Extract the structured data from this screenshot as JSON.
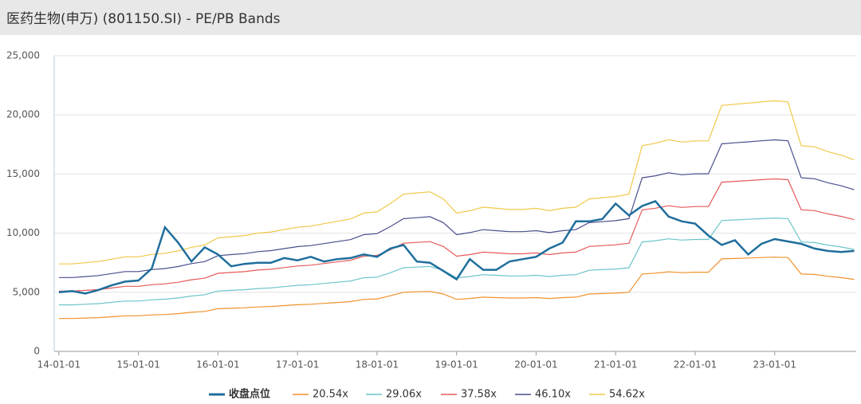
{
  "header": {
    "title": "医药生物(申万) (801150.SI) - PE/PB Bands"
  },
  "chart_data": {
    "type": "line",
    "x": [
      "14-01-01",
      "14-03-01",
      "14-05-01",
      "14-07-01",
      "14-09-01",
      "14-11-01",
      "15-01-01",
      "15-03-01",
      "15-05-01",
      "15-07-01",
      "15-09-01",
      "15-11-01",
      "16-01-01",
      "16-03-01",
      "16-05-01",
      "16-07-01",
      "16-09-01",
      "16-11-01",
      "17-01-01",
      "17-03-01",
      "17-05-01",
      "17-07-01",
      "17-09-01",
      "17-11-01",
      "18-01-01",
      "18-03-01",
      "18-05-01",
      "18-07-01",
      "18-09-01",
      "18-11-01",
      "19-01-01",
      "19-03-01",
      "19-05-01",
      "19-07-01",
      "19-09-01",
      "19-11-01",
      "20-01-01",
      "20-03-01",
      "20-05-01",
      "20-07-01",
      "20-09-01",
      "20-11-01",
      "21-01-01",
      "21-03-01",
      "21-05-01",
      "21-07-01",
      "21-09-01",
      "21-11-01",
      "22-01-01",
      "22-03-01",
      "22-05-01",
      "22-07-01",
      "22-09-01",
      "22-11-01",
      "23-01-01",
      "23-03-01",
      "23-05-01",
      "23-07-01",
      "23-09-01",
      "23-11-01",
      "24-01-01"
    ],
    "xlim": [
      "13-12-10",
      "24-01-10"
    ],
    "xticks": [
      "14-01-01",
      "15-01-01",
      "16-01-01",
      "17-01-01",
      "18-01-01",
      "19-01-01",
      "20-01-01",
      "21-01-01",
      "22-01-01",
      "23-01-01"
    ],
    "ylim": [
      0,
      25000
    ],
    "yticks": [
      0,
      {
        "value": 5000,
        "label": "5,000"
      },
      {
        "value": 10000,
        "label": "10,000"
      },
      {
        "value": 15000,
        "label": "15,000"
      },
      {
        "value": 20000,
        "label": "20,000"
      },
      {
        "value": 25000,
        "label": "25,000"
      }
    ],
    "grid": true,
    "legend": "bottom",
    "series": [
      {
        "name": "收盘点位",
        "color": "#1f6e9c",
        "values": [
          5000,
          5100,
          4900,
          5200,
          5600,
          5900,
          6000,
          7000,
          10500,
          9200,
          7600,
          8800,
          8200,
          7200,
          7400,
          7500,
          7500,
          7900,
          7700,
          8000,
          7600,
          7800,
          7900,
          8200,
          8000,
          8700,
          9000,
          7600,
          7500,
          6800,
          6100,
          7800,
          6900,
          6900,
          7600,
          7800,
          8000,
          8700,
          9200,
          11000,
          11000,
          11200,
          12500,
          11500,
          12300,
          12700,
          11400,
          11000,
          10800,
          9800,
          9000,
          9400,
          8200,
          9100,
          9500,
          9300,
          9100,
          8700,
          8500,
          8400,
          8500
        ]
      },
      {
        "name": "20.54x",
        "color": "#f0922b",
        "values": [
          2783,
          2783,
          2821,
          2858,
          2934,
          3009,
          3009,
          3084,
          3122,
          3197,
          3310,
          3385,
          3611,
          3648,
          3686,
          3761,
          3799,
          3874,
          3949,
          3987,
          4062,
          4137,
          4212,
          4400,
          4438,
          4701,
          5002,
          5040,
          5077,
          4852,
          4400,
          4476,
          4588,
          4551,
          4513,
          4513,
          4551,
          4476,
          4551,
          4588,
          4852,
          4889,
          4927,
          5002,
          6544,
          6619,
          6732,
          6657,
          6695,
          6695,
          7823,
          7860,
          7898,
          7936,
          7973,
          7936,
          6544,
          6507,
          6356,
          6243,
          6093
        ]
      },
      {
        "name": "29.06x",
        "color": "#6cc4c9",
        "values": [
          3937,
          3937,
          3990,
          4043,
          4150,
          4256,
          4256,
          4362,
          4416,
          4522,
          4682,
          4788,
          5107,
          5160,
          5214,
          5320,
          5373,
          5480,
          5586,
          5639,
          5746,
          5852,
          5958,
          6224,
          6278,
          6650,
          7076,
          7129,
          7182,
          6863,
          6224,
          6331,
          6490,
          6437,
          6384,
          6384,
          6437,
          6331,
          6437,
          6490,
          6863,
          6916,
          6969,
          7076,
          9257,
          9363,
          9523,
          9416,
          9470,
          9470,
          11066,
          11119,
          11172,
          11225,
          11278,
          11225,
          9257,
          9204,
          8991,
          8831,
          8618
        ]
      },
      {
        "name": "37.58x",
        "color": "#e55a5a",
        "values": [
          5092,
          5092,
          5161,
          5230,
          5367,
          5505,
          5505,
          5642,
          5711,
          5849,
          6055,
          6193,
          6606,
          6675,
          6743,
          6881,
          6950,
          7087,
          7225,
          7294,
          7431,
          7569,
          7707,
          8051,
          8120,
          8601,
          9152,
          9221,
          9289,
          8876,
          8051,
          8188,
          8395,
          8326,
          8257,
          8257,
          8326,
          8188,
          8326,
          8395,
          8876,
          8945,
          9014,
          9152,
          11973,
          12111,
          12317,
          12179,
          12248,
          12248,
          14312,
          14381,
          14450,
          14519,
          14588,
          14519,
          11973,
          11904,
          11629,
          11422,
          11147
        ]
      },
      {
        "name": "46.10x",
        "color": "#4a4f8c",
        "values": [
          6246,
          6246,
          6330,
          6414,
          6583,
          6752,
          6752,
          6921,
          7005,
          7174,
          7427,
          7596,
          8102,
          8187,
          8271,
          8440,
          8524,
          8693,
          8862,
          8946,
          9115,
          9284,
          9453,
          9875,
          9959,
          10550,
          11225,
          11310,
          11394,
          10888,
          9875,
          10044,
          10297,
          10212,
          10128,
          10128,
          10212,
          10044,
          10212,
          10297,
          10888,
          10972,
          11056,
          11225,
          14686,
          14854,
          15108,
          14939,
          15023,
          15023,
          17555,
          17640,
          17724,
          17808,
          17893,
          17808,
          14686,
          14601,
          14264,
          14010,
          13673
        ]
      },
      {
        "name": "54.62x",
        "color": "#f0c84a",
        "values": [
          7400,
          7400,
          7500,
          7600,
          7800,
          8000,
          8000,
          8200,
          8300,
          8500,
          8800,
          9000,
          9600,
          9700,
          9800,
          10000,
          10100,
          10300,
          10500,
          10600,
          10800,
          11000,
          11200,
          11700,
          11800,
          12500,
          13300,
          13400,
          13500,
          12900,
          11700,
          11900,
          12200,
          12100,
          12000,
          12000,
          12100,
          11900,
          12100,
          12200,
          12900,
          13000,
          13100,
          13300,
          17400,
          17600,
          17900,
          17700,
          17800,
          17800,
          20800,
          20900,
          21000,
          21100,
          21200,
          21100,
          17400,
          17300,
          16900,
          16600,
          16200
        ]
      }
    ]
  }
}
